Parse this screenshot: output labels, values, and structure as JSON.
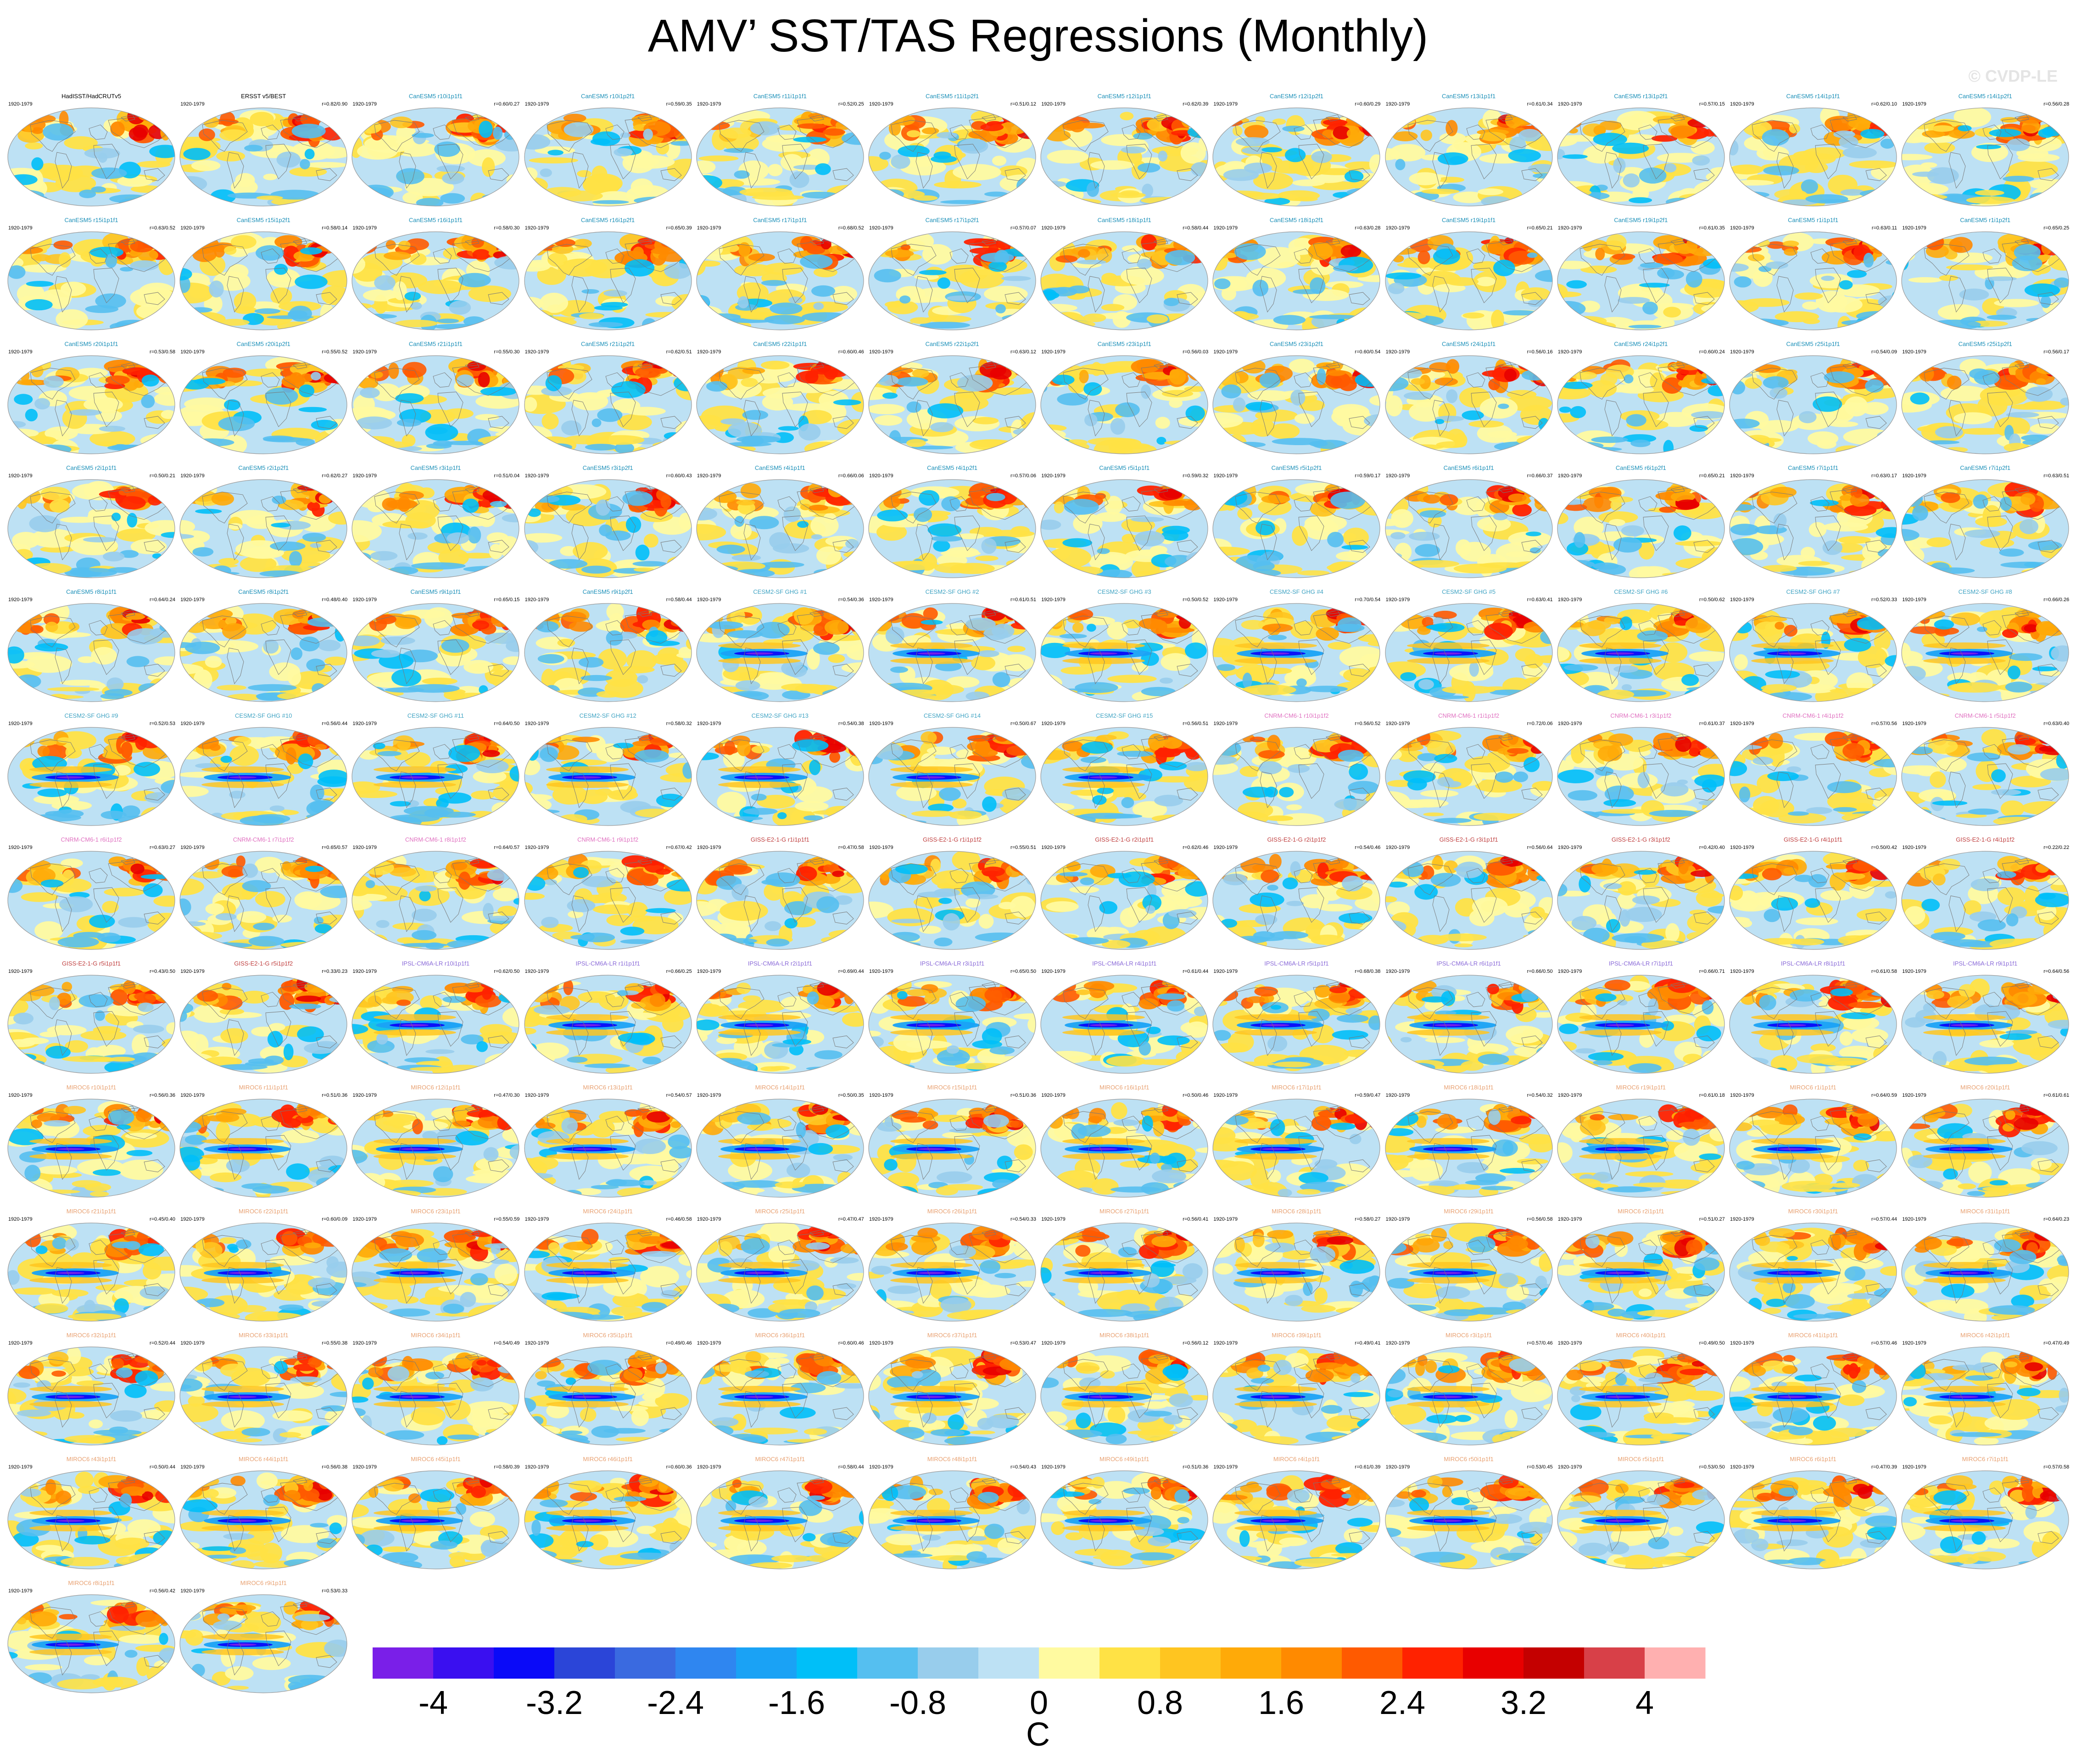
{
  "title": "AMV’ SST/TAS Regressions (Monthly)",
  "watermark": "© CVDP-LE",
  "chart_data": {
    "type": "heatmap",
    "title": "AMV’ SST/TAS Regressions (Monthly)",
    "projection": "global ellipse maps, one per ensemble member",
    "period": "1920-1979",
    "colorbar": {
      "unit": "C",
      "min": -4.4,
      "max": 4.4,
      "interval": 0.4,
      "tick_values": [
        -4,
        -3.2,
        -2.4,
        -1.6,
        -0.8,
        0,
        0.8,
        1.6,
        2.4,
        3.2,
        4
      ],
      "tick_labels": [
        "-4",
        "-3.2",
        "-2.4",
        "-1.6",
        "-0.8",
        "0",
        "0.8",
        "1.6",
        "2.4",
        "3.2",
        "4"
      ],
      "colors": [
        "#7a1fe8",
        "#3a0ff0",
        "#0a0af8",
        "#2b45d8",
        "#3a6ae0",
        "#2f86f0",
        "#1aa2f5",
        "#00bff8",
        "#55bff0",
        "#98cdec",
        "#bde1f4",
        "#fffaa0",
        "#ffe245",
        "#ffc520",
        "#ffaa08",
        "#ff8a00",
        "#ff5a00",
        "#ff2200",
        "#e80000",
        "#c40000",
        "#d84048",
        "#ffb0b0"
      ]
    },
    "panels": [
      {
        "name": "HadISST/HadCRUTv5",
        "years": "1920-1979",
        "stat": ""
      },
      {
        "name": "ERSST v5/BEST",
        "years": "1920-1979",
        "stat": "r=0.82/0.90"
      },
      {
        "name": "CanESM5 r10i1p1f1",
        "years": "1920-1979",
        "stat": "r=0.60/0.27"
      },
      {
        "name": "CanESM5 r10i1p2f1",
        "years": "1920-1979",
        "stat": "r=0.59/0.35"
      },
      {
        "name": "CanESM5 r11i1p1f1",
        "years": "1920-1979",
        "stat": "r=0.52/0.25"
      },
      {
        "name": "CanESM5 r11i1p2f1",
        "years": "1920-1979",
        "stat": "r=0.51/0.12"
      },
      {
        "name": "CanESM5 r12i1p1f1",
        "years": "1920-1979",
        "stat": "r=0.62/0.39"
      },
      {
        "name": "CanESM5 r12i1p2f1",
        "years": "1920-1979",
        "stat": "r=0.60/0.29"
      },
      {
        "name": "CanESM5 r13i1p1f1",
        "years": "1920-1979",
        "stat": "r=0.61/0.34"
      },
      {
        "name": "CanESM5 r13i1p2f1",
        "years": "1920-1979",
        "stat": "r=0.57/0.15"
      },
      {
        "name": "CanESM5 r14i1p1f1",
        "years": "1920-1979",
        "stat": "r=0.62/0.10"
      },
      {
        "name": "CanESM5 r14i1p2f1",
        "years": "1920-1979",
        "stat": "r=0.56/0.28"
      },
      {
        "name": "CanESM5 r15i1p1f1",
        "years": "1920-1979",
        "stat": "r=0.63/0.52"
      },
      {
        "name": "CanESM5 r15i1p2f1",
        "years": "1920-1979",
        "stat": "r=0.58/0.14"
      },
      {
        "name": "CanESM5 r16i1p1f1",
        "years": "1920-1979",
        "stat": "r=0.58/0.30"
      },
      {
        "name": "CanESM5 r16i1p2f1",
        "years": "1920-1979",
        "stat": "r=0.65/0.39"
      },
      {
        "name": "CanESM5 r17i1p1f1",
        "years": "1920-1979",
        "stat": "r=0.68/0.52"
      },
      {
        "name": "CanESM5 r17i1p2f1",
        "years": "1920-1979",
        "stat": "r=0.57/0.07"
      },
      {
        "name": "CanESM5 r18i1p1f1",
        "years": "1920-1979",
        "stat": "r=0.58/0.44"
      },
      {
        "name": "CanESM5 r18i1p2f1",
        "years": "1920-1979",
        "stat": "r=0.63/0.28"
      },
      {
        "name": "CanESM5 r19i1p1f1",
        "years": "1920-1979",
        "stat": "r=0.65/0.21"
      },
      {
        "name": "CanESM5 r19i1p2f1",
        "years": "1920-1979",
        "stat": "r=0.61/0.35"
      },
      {
        "name": "CanESM5 r1i1p1f1",
        "years": "1920-1979",
        "stat": "r=0.63/0.11"
      },
      {
        "name": "CanESM5 r1i1p2f1",
        "years": "1920-1979",
        "stat": "r=0.65/0.25"
      },
      {
        "name": "CanESM5 r20i1p1f1",
        "years": "1920-1979",
        "stat": "r=0.53/0.58"
      },
      {
        "name": "CanESM5 r20i1p2f1",
        "years": "1920-1979",
        "stat": "r=0.55/0.52"
      },
      {
        "name": "CanESM5 r21i1p1f1",
        "years": "1920-1979",
        "stat": "r=0.55/0.30"
      },
      {
        "name": "CanESM5 r21i1p2f1",
        "years": "1920-1979",
        "stat": "r=0.62/0.51"
      },
      {
        "name": "CanESM5 r22i1p1f1",
        "years": "1920-1979",
        "stat": "r=0.60/0.46"
      },
      {
        "name": "CanESM5 r22i1p2f1",
        "years": "1920-1979",
        "stat": "r=0.63/0.12"
      },
      {
        "name": "CanESM5 r23i1p1f1",
        "years": "1920-1979",
        "stat": "r=0.56/0.03"
      },
      {
        "name": "CanESM5 r23i1p2f1",
        "years": "1920-1979",
        "stat": "r=0.60/0.54"
      },
      {
        "name": "CanESM5 r24i1p1f1",
        "years": "1920-1979",
        "stat": "r=0.56/0.16"
      },
      {
        "name": "CanESM5 r24i1p2f1",
        "years": "1920-1979",
        "stat": "r=0.60/0.24"
      },
      {
        "name": "CanESM5 r25i1p1f1",
        "years": "1920-1979",
        "stat": "r=0.54/0.09"
      },
      {
        "name": "CanESM5 r25i1p2f1",
        "years": "1920-1979",
        "stat": "r=0.56/0.17"
      },
      {
        "name": "CanESM5 r2i1p1f1",
        "years": "1920-1979",
        "stat": "r=0.50/0.21"
      },
      {
        "name": "CanESM5 r2i1p2f1",
        "years": "1920-1979",
        "stat": "r=0.62/0.27"
      },
      {
        "name": "CanESM5 r3i1p1f1",
        "years": "1920-1979",
        "stat": "r=0.51/0.04"
      },
      {
        "name": "CanESM5 r3i1p2f1",
        "years": "1920-1979",
        "stat": "r=0.60/0.43"
      },
      {
        "name": "CanESM5 r4i1p1f1",
        "years": "1920-1979",
        "stat": "r=0.66/0.06"
      },
      {
        "name": "CanESM5 r4i1p2f1",
        "years": "1920-1979",
        "stat": "r=0.57/0.06"
      },
      {
        "name": "CanESM5 r5i1p1f1",
        "years": "1920-1979",
        "stat": "r=0.59/0.32"
      },
      {
        "name": "CanESM5 r5i1p2f1",
        "years": "1920-1979",
        "stat": "r=0.59/0.17"
      },
      {
        "name": "CanESM5 r6i1p1f1",
        "years": "1920-1979",
        "stat": "r=0.66/0.37"
      },
      {
        "name": "CanESM5 r6i1p2f1",
        "years": "1920-1979",
        "stat": "r=0.65/0.21"
      },
      {
        "name": "CanESM5 r7i1p1f1",
        "years": "1920-1979",
        "stat": "r=0.63/0.17"
      },
      {
        "name": "CanESM5 r7i1p2f1",
        "years": "1920-1979",
        "stat": "r=0.63/0.51"
      },
      {
        "name": "CanESM5 r8i1p1f1",
        "years": "1920-1979",
        "stat": "r=0.64/0.24"
      },
      {
        "name": "CanESM5 r8i1p2f1",
        "years": "1920-1979",
        "stat": "r=0.48/0.40"
      },
      {
        "name": "CanESM5 r9i1p1f1",
        "years": "1920-1979",
        "stat": "r=0.65/0.15"
      },
      {
        "name": "CanESM5 r9i1p2f1",
        "years": "1920-1979",
        "stat": "r=0.58/0.44"
      },
      {
        "name": "CESM2-SF GHG #1",
        "years": "1920-1979",
        "stat": "r=0.54/0.36"
      },
      {
        "name": "CESM2-SF GHG #2",
        "years": "1920-1979",
        "stat": "r=0.61/0.51"
      },
      {
        "name": "CESM2-SF GHG #3",
        "years": "1920-1979",
        "stat": "r=0.50/0.52"
      },
      {
        "name": "CESM2-SF GHG #4",
        "years": "1920-1979",
        "stat": "r=0.70/0.54"
      },
      {
        "name": "CESM2-SF GHG #5",
        "years": "1920-1979",
        "stat": "r=0.63/0.41"
      },
      {
        "name": "CESM2-SF GHG #6",
        "years": "1920-1979",
        "stat": "r=0.50/0.62"
      },
      {
        "name": "CESM2-SF GHG #7",
        "years": "1920-1979",
        "stat": "r=0.52/0.33"
      },
      {
        "name": "CESM2-SF GHG #8",
        "years": "1920-1979",
        "stat": "r=0.66/0.26"
      },
      {
        "name": "CESM2-SF GHG #9",
        "years": "1920-1979",
        "stat": "r=0.52/0.53"
      },
      {
        "name": "CESM2-SF GHG #10",
        "years": "1920-1979",
        "stat": "r=0.56/0.44"
      },
      {
        "name": "CESM2-SF GHG #11",
        "years": "1920-1979",
        "stat": "r=0.64/0.50"
      },
      {
        "name": "CESM2-SF GHG #12",
        "years": "1920-1979",
        "stat": "r=0.58/0.32"
      },
      {
        "name": "CESM2-SF GHG #13",
        "years": "1920-1979",
        "stat": "r=0.54/0.38"
      },
      {
        "name": "CESM2-SF GHG #14",
        "years": "1920-1979",
        "stat": "r=0.50/0.67"
      },
      {
        "name": "CESM2-SF GHG #15",
        "years": "1920-1979",
        "stat": "r=0.56/0.51"
      },
      {
        "name": "CNRM-CM6-1 r10i1p1f2",
        "years": "1920-1979",
        "stat": "r=0.56/0.52"
      },
      {
        "name": "CNRM-CM6-1 r1i1p1f2",
        "years": "1920-1979",
        "stat": "r=0.72/0.06"
      },
      {
        "name": "CNRM-CM6-1 r3i1p1f2",
        "years": "1920-1979",
        "stat": "r=0.61/0.37"
      },
      {
        "name": "CNRM-CM6-1 r4i1p1f2",
        "years": "1920-1979",
        "stat": "r=0.57/0.56"
      },
      {
        "name": "CNRM-CM6-1 r5i1p1f2",
        "years": "1920-1979",
        "stat": "r=0.63/0.40"
      },
      {
        "name": "CNRM-CM6-1 r6i1p1f2",
        "years": "1920-1979",
        "stat": "r=0.63/0.27"
      },
      {
        "name": "CNRM-CM6-1 r7i1p1f2",
        "years": "1920-1979",
        "stat": "r=0.65/0.57"
      },
      {
        "name": "CNRM-CM6-1 r8i1p1f2",
        "years": "1920-1979",
        "stat": "r=0.64/0.57"
      },
      {
        "name": "CNRM-CM6-1 r9i1p1f2",
        "years": "1920-1979",
        "stat": "r=0.67/0.42"
      },
      {
        "name": "GISS-E2-1-G r1i1p1f1",
        "years": "1920-1979",
        "stat": "r=0.47/0.58"
      },
      {
        "name": "GISS-E2-1-G r1i1p1f2",
        "years": "1920-1979",
        "stat": "r=0.55/0.51"
      },
      {
        "name": "GISS-E2-1-G r2i1p1f1",
        "years": "1920-1979",
        "stat": "r=0.62/0.46"
      },
      {
        "name": "GISS-E2-1-G r2i1p1f2",
        "years": "1920-1979",
        "stat": "r=0.54/0.46"
      },
      {
        "name": "GISS-E2-1-G r3i1p1f1",
        "years": "1920-1979",
        "stat": "r=0.56/0.64"
      },
      {
        "name": "GISS-E2-1-G r3i1p1f2",
        "years": "1920-1979",
        "stat": "r=0.42/0.40"
      },
      {
        "name": "GISS-E2-1-G r4i1p1f1",
        "years": "1920-1979",
        "stat": "r=0.50/0.42"
      },
      {
        "name": "GISS-E2-1-G r4i1p1f2",
        "years": "1920-1979",
        "stat": "r=0.22/0.22"
      },
      {
        "name": "GISS-E2-1-G r5i1p1f1",
        "years": "1920-1979",
        "stat": "r=0.43/0.50"
      },
      {
        "name": "GISS-E2-1-G r5i1p1f2",
        "years": "1920-1979",
        "stat": "r=0.33/0.23"
      },
      {
        "name": "IPSL-CM6A-LR r10i1p1f1",
        "years": "1920-1979",
        "stat": "r=0.62/0.50"
      },
      {
        "name": "IPSL-CM6A-LR r1i1p1f1",
        "years": "1920-1979",
        "stat": "r=0.66/0.25"
      },
      {
        "name": "IPSL-CM6A-LR r2i1p1f1",
        "years": "1920-1979",
        "stat": "r=0.69/0.44"
      },
      {
        "name": "IPSL-CM6A-LR r3i1p1f1",
        "years": "1920-1979",
        "stat": "r=0.65/0.50"
      },
      {
        "name": "IPSL-CM6A-LR r4i1p1f1",
        "years": "1920-1979",
        "stat": "r=0.61/0.44"
      },
      {
        "name": "IPSL-CM6A-LR r5i1p1f1",
        "years": "1920-1979",
        "stat": "r=0.68/0.38"
      },
      {
        "name": "IPSL-CM6A-LR r6i1p1f1",
        "years": "1920-1979",
        "stat": "r=0.66/0.50"
      },
      {
        "name": "IPSL-CM6A-LR r7i1p1f1",
        "years": "1920-1979",
        "stat": "r=0.66/0.71"
      },
      {
        "name": "IPSL-CM6A-LR r8i1p1f1",
        "years": "1920-1979",
        "stat": "r=0.61/0.58"
      },
      {
        "name": "IPSL-CM6A-LR r9i1p1f1",
        "years": "1920-1979",
        "stat": "r=0.64/0.56"
      },
      {
        "name": "MIROC6 r10i1p1f1",
        "years": "1920-1979",
        "stat": "r=0.56/0.36"
      },
      {
        "name": "MIROC6 r11i1p1f1",
        "years": "1920-1979",
        "stat": "r=0.51/0.36"
      },
      {
        "name": "MIROC6 r12i1p1f1",
        "years": "1920-1979",
        "stat": "r=0.47/0.30"
      },
      {
        "name": "MIROC6 r13i1p1f1",
        "years": "1920-1979",
        "stat": "r=0.54/0.57"
      },
      {
        "name": "MIROC6 r14i1p1f1",
        "years": "1920-1979",
        "stat": "r=0.50/0.35"
      },
      {
        "name": "MIROC6 r15i1p1f1",
        "years": "1920-1979",
        "stat": "r=0.51/0.36"
      },
      {
        "name": "MIROC6 r16i1p1f1",
        "years": "1920-1979",
        "stat": "r=0.50/0.46"
      },
      {
        "name": "MIROC6 r17i1p1f1",
        "years": "1920-1979",
        "stat": "r=0.59/0.47"
      },
      {
        "name": "MIROC6 r18i1p1f1",
        "years": "1920-1979",
        "stat": "r=0.54/0.32"
      },
      {
        "name": "MIROC6 r19i1p1f1",
        "years": "1920-1979",
        "stat": "r=0.61/0.18"
      },
      {
        "name": "MIROC6 r1i1p1f1",
        "years": "1920-1979",
        "stat": "r=0.64/0.59"
      },
      {
        "name": "MIROC6 r20i1p1f1",
        "years": "1920-1979",
        "stat": "r=0.61/0.61"
      },
      {
        "name": "MIROC6 r21i1p1f1",
        "years": "1920-1979",
        "stat": "r=0.45/0.40"
      },
      {
        "name": "MIROC6 r22i1p1f1",
        "years": "1920-1979",
        "stat": "r=0.60/0.09"
      },
      {
        "name": "MIROC6 r23i1p1f1",
        "years": "1920-1979",
        "stat": "r=0.55/0.59"
      },
      {
        "name": "MIROC6 r24i1p1f1",
        "years": "1920-1979",
        "stat": "r=0.46/0.58"
      },
      {
        "name": "MIROC6 r25i1p1f1",
        "years": "1920-1979",
        "stat": "r=0.47/0.47"
      },
      {
        "name": "MIROC6 r26i1p1f1",
        "years": "1920-1979",
        "stat": "r=0.54/0.33"
      },
      {
        "name": "MIROC6 r27i1p1f1",
        "years": "1920-1979",
        "stat": "r=0.56/0.41"
      },
      {
        "name": "MIROC6 r28i1p1f1",
        "years": "1920-1979",
        "stat": "r=0.58/0.27"
      },
      {
        "name": "MIROC6 r29i1p1f1",
        "years": "1920-1979",
        "stat": "r=0.56/0.58"
      },
      {
        "name": "MIROC6 r2i1p1f1",
        "years": "1920-1979",
        "stat": "r=0.51/0.27"
      },
      {
        "name": "MIROC6 r30i1p1f1",
        "years": "1920-1979",
        "stat": "r=0.57/0.44"
      },
      {
        "name": "MIROC6 r31i1p1f1",
        "years": "1920-1979",
        "stat": "r=0.64/0.23"
      },
      {
        "name": "MIROC6 r32i1p1f1",
        "years": "1920-1979",
        "stat": "r=0.52/0.44"
      },
      {
        "name": "MIROC6 r33i1p1f1",
        "years": "1920-1979",
        "stat": "r=0.55/0.38"
      },
      {
        "name": "MIROC6 r34i1p1f1",
        "years": "1920-1979",
        "stat": "r=0.54/0.49"
      },
      {
        "name": "MIROC6 r35i1p1f1",
        "years": "1920-1979",
        "stat": "r=0.49/0.46"
      },
      {
        "name": "MIROC6 r36i1p1f1",
        "years": "1920-1979",
        "stat": "r=0.60/0.46"
      },
      {
        "name": "MIROC6 r37i1p1f1",
        "years": "1920-1979",
        "stat": "r=0.53/0.47"
      },
      {
        "name": "MIROC6 r38i1p1f1",
        "years": "1920-1979",
        "stat": "r=0.56/0.12"
      },
      {
        "name": "MIROC6 r39i1p1f1",
        "years": "1920-1979",
        "stat": "r=0.49/0.41"
      },
      {
        "name": "MIROC6 r3i1p1f1",
        "years": "1920-1979",
        "stat": "r=0.57/0.46"
      },
      {
        "name": "MIROC6 r40i1p1f1",
        "years": "1920-1979",
        "stat": "r=0.49/0.50"
      },
      {
        "name": "MIROC6 r41i1p1f1",
        "years": "1920-1979",
        "stat": "r=0.57/0.46"
      },
      {
        "name": "MIROC6 r42i1p1f1",
        "years": "1920-1979",
        "stat": "r=0.47/0.49"
      },
      {
        "name": "MIROC6 r43i1p1f1",
        "years": "1920-1979",
        "stat": "r=0.50/0.44"
      },
      {
        "name": "MIROC6 r44i1p1f1",
        "years": "1920-1979",
        "stat": "r=0.56/0.38"
      },
      {
        "name": "MIROC6 r45i1p1f1",
        "years": "1920-1979",
        "stat": "r=0.58/0.39"
      },
      {
        "name": "MIROC6 r46i1p1f1",
        "years": "1920-1979",
        "stat": "r=0.60/0.36"
      },
      {
        "name": "MIROC6 r47i1p1f1",
        "years": "1920-1979",
        "stat": "r=0.58/0.44"
      },
      {
        "name": "MIROC6 r48i1p1f1",
        "years": "1920-1979",
        "stat": "r=0.54/0.43"
      },
      {
        "name": "MIROC6 r49i1p1f1",
        "years": "1920-1979",
        "stat": "r=0.51/0.36"
      },
      {
        "name": "MIROC6 r4i1p1f1",
        "years": "1920-1979",
        "stat": "r=0.61/0.39"
      },
      {
        "name": "MIROC6 r50i1p1f1",
        "years": "1920-1979",
        "stat": "r=0.53/0.45"
      },
      {
        "name": "MIROC6 r5i1p1f1",
        "years": "1920-1979",
        "stat": "r=0.53/0.50"
      },
      {
        "name": "MIROC6 r6i1p1f1",
        "years": "1920-1979",
        "stat": "r=0.47/0.39"
      },
      {
        "name": "MIROC6 r7i1p1f1",
        "years": "1920-1979",
        "stat": "r=0.57/0.58"
      },
      {
        "name": "MIROC6 r8i1p1f1",
        "years": "1920-1979",
        "stat": "r=0.56/0.42"
      },
      {
        "name": "MIROC6 r9i1p1f1",
        "years": "1920-1979",
        "stat": "r=0.53/0.33"
      }
    ]
  },
  "name_colors": {
    "Observed": "#000000",
    "CanESM5": "#1a8fb8",
    "CESM2-SF": "#3fa3c3",
    "CNRM-CM6-1": "#e070c0",
    "GISS-E2-1-G": "#c04040",
    "IPSL-CM6A-LR": "#8a6ad8",
    "MIROC6": "#e8a070"
  },
  "map_colors": {
    "ocean_base": "#bde1f4",
    "land_base": "#fff6b0",
    "outline": "#9a9a9a",
    "coast": "#777777"
  }
}
